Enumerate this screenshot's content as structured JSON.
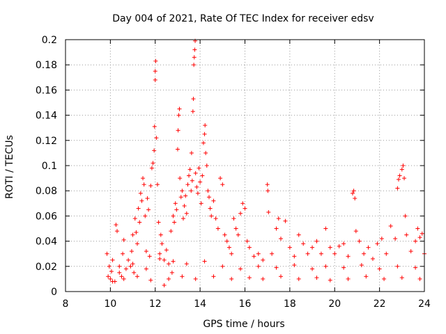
{
  "chart_data": {
    "type": "scatter",
    "title": "Day 004 of 2021, Rate Of TEC Index for receiver edsv",
    "xlabel": "GPS time / hours",
    "ylabel": "ROTI / TECUs",
    "xlim": [
      8,
      24
    ],
    "ylim": [
      0,
      0.2
    ],
    "x_ticks": [
      8,
      10,
      12,
      14,
      16,
      18,
      20,
      22,
      24
    ],
    "x_tick_labels": [
      "8",
      "10",
      "12",
      "14",
      "16",
      "18",
      "20",
      "22",
      "24"
    ],
    "y_ticks": [
      0,
      0.02,
      0.04,
      0.06,
      0.08,
      0.1,
      0.12,
      0.14,
      0.16,
      0.18,
      0.2
    ],
    "y_tick_labels": [
      "0",
      "0.02",
      "0.04",
      "0.06",
      "0.08",
      "0.1",
      "0.12",
      "0.14",
      "0.16",
      "0.18",
      "0.2"
    ],
    "grid": true,
    "marker": "+",
    "marker_color": "#ff0000",
    "series": [
      {
        "name": "ROTI",
        "points": [
          [
            9.85,
            0.03
          ],
          [
            9.9,
            0.012
          ],
          [
            9.95,
            0.02
          ],
          [
            10.0,
            0.01
          ],
          [
            10.05,
            0.016
          ],
          [
            10.1,
            0.025
          ],
          [
            10.2,
            0.008
          ],
          [
            10.25,
            0.053
          ],
          [
            10.3,
            0.048
          ],
          [
            10.4,
            0.015
          ],
          [
            10.5,
            0.012
          ],
          [
            10.55,
            0.03
          ],
          [
            10.6,
            0.041
          ],
          [
            10.7,
            0.018
          ],
          [
            10.8,
            0.025
          ],
          [
            10.9,
            0.02
          ],
          [
            10.95,
            0.032
          ],
          [
            11.0,
            0.045
          ],
          [
            11.05,
            0.015
          ],
          [
            11.1,
            0.058
          ],
          [
            11.15,
            0.047
          ],
          [
            11.2,
            0.038
          ],
          [
            11.25,
            0.066
          ],
          [
            11.3,
            0.055
          ],
          [
            11.35,
            0.078
          ],
          [
            11.4,
            0.072
          ],
          [
            11.45,
            0.09
          ],
          [
            11.5,
            0.085
          ],
          [
            11.55,
            0.06
          ],
          [
            11.6,
            0.032
          ],
          [
            11.65,
            0.074
          ],
          [
            11.7,
            0.065
          ],
          [
            11.75,
            0.028
          ],
          [
            11.8,
            0.084
          ],
          [
            11.85,
            0.098
          ],
          [
            11.9,
            0.102
          ],
          [
            11.95,
            0.112
          ],
          [
            12.0,
            0.168
          ],
          [
            12.0,
            0.175
          ],
          [
            12.02,
            0.183
          ],
          [
            11.97,
            0.131
          ],
          [
            12.05,
            0.122
          ],
          [
            12.1,
            0.085
          ],
          [
            12.15,
            0.055
          ],
          [
            12.2,
            0.03
          ],
          [
            12.25,
            0.045
          ],
          [
            12.3,
            0.038
          ],
          [
            12.4,
            0.025
          ],
          [
            12.5,
            0.033
          ],
          [
            12.6,
            0.022
          ],
          [
            12.7,
            0.048
          ],
          [
            12.75,
            0.015
          ],
          [
            12.8,
            0.06
          ],
          [
            12.85,
            0.055
          ],
          [
            12.9,
            0.07
          ],
          [
            12.95,
            0.065
          ],
          [
            13.0,
            0.113
          ],
          [
            13.02,
            0.128
          ],
          [
            13.05,
            0.14
          ],
          [
            13.08,
            0.145
          ],
          [
            13.1,
            0.09
          ],
          [
            13.15,
            0.075
          ],
          [
            13.2,
            0.08
          ],
          [
            13.25,
            0.058
          ],
          [
            13.3,
            0.068
          ],
          [
            13.35,
            0.076
          ],
          [
            13.4,
            0.062
          ],
          [
            13.45,
            0.085
          ],
          [
            13.5,
            0.092
          ],
          [
            13.55,
            0.097
          ],
          [
            13.6,
            0.08
          ],
          [
            13.62,
            0.11
          ],
          [
            13.65,
            0.088
          ],
          [
            13.68,
            0.143
          ],
          [
            13.7,
            0.153
          ],
          [
            13.72,
            0.18
          ],
          [
            13.74,
            0.186
          ],
          [
            13.76,
            0.192
          ],
          [
            13.78,
            0.199
          ],
          [
            13.8,
            0.094
          ],
          [
            13.85,
            0.083
          ],
          [
            13.9,
            0.078
          ],
          [
            13.95,
            0.098
          ],
          [
            14.0,
            0.087
          ],
          [
            14.05,
            0.07
          ],
          [
            14.1,
            0.092
          ],
          [
            14.15,
            0.118
          ],
          [
            14.2,
            0.125
          ],
          [
            14.22,
            0.132
          ],
          [
            14.25,
            0.11
          ],
          [
            14.3,
            0.1
          ],
          [
            14.35,
            0.08
          ],
          [
            14.4,
            0.075
          ],
          [
            14.45,
            0.066
          ],
          [
            14.5,
            0.06
          ],
          [
            14.6,
            0.072
          ],
          [
            14.7,
            0.058
          ],
          [
            14.8,
            0.05
          ],
          [
            14.9,
            0.09
          ],
          [
            15.0,
            0.085
          ],
          [
            15.1,
            0.045
          ],
          [
            15.2,
            0.04
          ],
          [
            15.3,
            0.035
          ],
          [
            15.4,
            0.03
          ],
          [
            15.5,
            0.058
          ],
          [
            15.6,
            0.05
          ],
          [
            15.7,
            0.045
          ],
          [
            15.8,
            0.062
          ],
          [
            15.9,
            0.07
          ],
          [
            16.0,
            0.066
          ],
          [
            16.1,
            0.04
          ],
          [
            16.2,
            0.035
          ],
          [
            16.4,
            0.028
          ],
          [
            16.6,
            0.03
          ],
          [
            16.8,
            0.025
          ],
          [
            17.0,
            0.085
          ],
          [
            17.02,
            0.08
          ],
          [
            17.05,
            0.063
          ],
          [
            17.2,
            0.03
          ],
          [
            17.4,
            0.05
          ],
          [
            17.5,
            0.058
          ],
          [
            17.6,
            0.042
          ],
          [
            17.8,
            0.056
          ],
          [
            18.0,
            0.035
          ],
          [
            18.2,
            0.028
          ],
          [
            18.4,
            0.045
          ],
          [
            18.6,
            0.038
          ],
          [
            18.8,
            0.03
          ],
          [
            19.0,
            0.035
          ],
          [
            19.2,
            0.04
          ],
          [
            19.4,
            0.03
          ],
          [
            19.6,
            0.05
          ],
          [
            19.8,
            0.035
          ],
          [
            20.0,
            0.03
          ],
          [
            20.2,
            0.036
          ],
          [
            20.4,
            0.038
          ],
          [
            20.6,
            0.028
          ],
          [
            20.8,
            0.078
          ],
          [
            20.85,
            0.08
          ],
          [
            20.9,
            0.074
          ],
          [
            20.95,
            0.048
          ],
          [
            21.1,
            0.04
          ],
          [
            21.3,
            0.03
          ],
          [
            21.5,
            0.035
          ],
          [
            21.7,
            0.026
          ],
          [
            21.9,
            0.038
          ],
          [
            22.1,
            0.042
          ],
          [
            22.3,
            0.03
          ],
          [
            22.5,
            0.052
          ],
          [
            22.7,
            0.042
          ],
          [
            22.8,
            0.082
          ],
          [
            22.85,
            0.089
          ],
          [
            22.9,
            0.092
          ],
          [
            23.0,
            0.097
          ],
          [
            23.05,
            0.1
          ],
          [
            23.1,
            0.09
          ],
          [
            23.15,
            0.06
          ],
          [
            23.2,
            0.045
          ],
          [
            23.4,
            0.032
          ],
          [
            23.6,
            0.04
          ],
          [
            23.7,
            0.05
          ],
          [
            23.8,
            0.043
          ],
          [
            23.9,
            0.046
          ],
          [
            24.0,
            0.03
          ],
          [
            10.1,
            0.008
          ],
          [
            10.6,
            0.01
          ],
          [
            11.2,
            0.012
          ],
          [
            11.8,
            0.009
          ],
          [
            12.4,
            0.005
          ],
          [
            12.6,
            0.01
          ],
          [
            13.2,
            0.012
          ],
          [
            13.8,
            0.01
          ],
          [
            14.6,
            0.012
          ],
          [
            15.4,
            0.01
          ],
          [
            16.2,
            0.011
          ],
          [
            16.8,
            0.01
          ],
          [
            17.6,
            0.012
          ],
          [
            18.4,
            0.01
          ],
          [
            19.2,
            0.011
          ],
          [
            19.8,
            0.009
          ],
          [
            20.6,
            0.01
          ],
          [
            21.4,
            0.012
          ],
          [
            22.2,
            0.01
          ],
          [
            23.0,
            0.011
          ],
          [
            23.8,
            0.01
          ],
          [
            10.4,
            0.02
          ],
          [
            11.0,
            0.022
          ],
          [
            11.6,
            0.018
          ],
          [
            12.2,
            0.026
          ],
          [
            12.8,
            0.024
          ],
          [
            13.4,
            0.022
          ],
          [
            14.2,
            0.024
          ],
          [
            15.0,
            0.02
          ],
          [
            15.8,
            0.018
          ],
          [
            16.6,
            0.02
          ],
          [
            17.4,
            0.019
          ],
          [
            18.2,
            0.021
          ],
          [
            19.0,
            0.018
          ],
          [
            19.6,
            0.02
          ],
          [
            20.4,
            0.019
          ],
          [
            21.2,
            0.021
          ],
          [
            22.0,
            0.018
          ],
          [
            22.8,
            0.02
          ],
          [
            23.6,
            0.019
          ]
        ]
      }
    ]
  }
}
